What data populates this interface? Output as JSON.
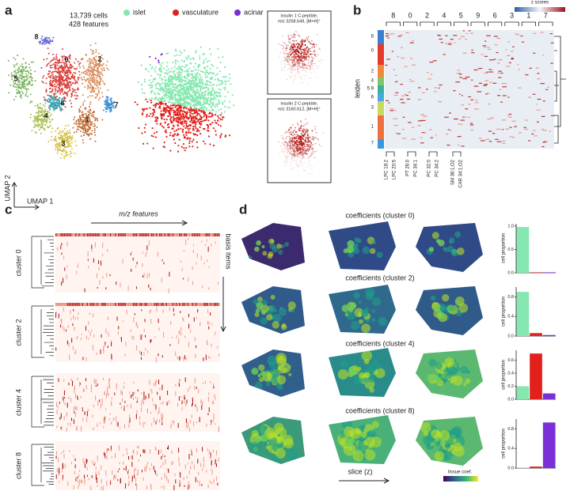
{
  "figure": {
    "a": {
      "label": "a",
      "summary": [
        "13,739 cells",
        "428 features"
      ],
      "legend": [
        {
          "name": "islet",
          "color": "#86e8b0"
        },
        {
          "name": "vasculature",
          "color": "#e3201c"
        },
        {
          "name": "acinar",
          "color": "#7b2fd6"
        }
      ],
      "cluster_labels": [
        "8",
        "0",
        "2",
        "5",
        "6",
        "7",
        "4",
        "1",
        "3"
      ],
      "axis_labels": [
        "UMAP 2",
        "UMAP 1"
      ],
      "insets": [
        [
          "insulin 1 C-peptide,",
          "m/z 3258.649, [M+H]⁺"
        ],
        [
          "insulin 2 C-peptide,",
          "m/z 3160.612, [M+H]⁺"
        ]
      ]
    },
    "b": {
      "label": "b",
      "colorbar_title": "z scores",
      "row_title": "leiden",
      "col_clusters": [
        "8",
        "0",
        "2",
        "4",
        "5",
        "9",
        "6",
        "3",
        "1",
        "7"
      ],
      "row_clusters": [
        "8",
        "0",
        "2",
        "4",
        "5 9",
        "6",
        "3",
        "1",
        "7"
      ],
      "features": [
        "LPC 18:2",
        "LPC 20:5",
        "PT 26:0",
        "PC 34:1",
        "PC 32:0",
        "PC 34:2",
        "SM 36:1;O2",
        "CAR 34:1;O2"
      ]
    },
    "c": {
      "label": "c",
      "x_title": "m/z features",
      "y_title": "basis items",
      "clusters": [
        "cluster 0",
        "cluster 2",
        "cluster 4",
        "cluster 8"
      ]
    },
    "d": {
      "label": "d",
      "titles": [
        "coefficients (cluster 0)",
        "coefficients (cluster 2)",
        "coefficients (cluster 4)",
        "coefficients (cluster 8)"
      ],
      "x_title": "slice (z)",
      "colorbar_title": "tissue coef."
    }
  },
  "chart_data": [
    {
      "type": "bar",
      "ylabel": "cell proportion",
      "categories": [
        null,
        null,
        null
      ],
      "colors": [
        "#86e8b0",
        "#e3201c",
        "#7b2fd6"
      ],
      "values": [
        0.98,
        0.01,
        0.01
      ],
      "ylim": [
        0,
        1.05
      ],
      "yticks": [
        {
          "value": 0,
          "label": "0.0"
        },
        0.5,
        {
          "value": 1,
          "label": "1.0"
        }
      ]
    },
    {
      "type": "bar",
      "ylabel": "cell proportion",
      "categories": [
        null,
        null,
        null
      ],
      "colors": [
        "#86e8b0",
        "#e3201c",
        "#7b2fd6"
      ],
      "values": [
        0.9,
        0.06,
        0.02
      ],
      "ylim": [
        0,
        1.0
      ],
      "yticks": [
        {
          "value": 0,
          "label": "0.0"
        },
        0.4,
        0.8
      ]
    },
    {
      "type": "bar",
      "ylabel": "cell proportion",
      "categories": [
        null,
        null,
        null
      ],
      "colors": [
        "#86e8b0",
        "#e3201c",
        "#7b2fd6"
      ],
      "values": [
        0.2,
        0.7,
        0.09
      ],
      "ylim": [
        0,
        0.75
      ],
      "yticks": [
        {
          "value": 0,
          "label": "0.0"
        },
        0.2,
        0.4,
        0.6
      ]
    },
    {
      "type": "bar",
      "ylabel": "cell proportion",
      "categories": [
        null,
        null,
        null
      ],
      "colors": [
        "#86e8b0",
        "#e3201c",
        "#7b2fd6"
      ],
      "values": [
        0.01,
        0.03,
        0.93
      ],
      "ylim": [
        0,
        1.0
      ],
      "yticks": [
        {
          "value": 0,
          "label": "0.0"
        },
        0.4,
        0.8
      ]
    }
  ]
}
